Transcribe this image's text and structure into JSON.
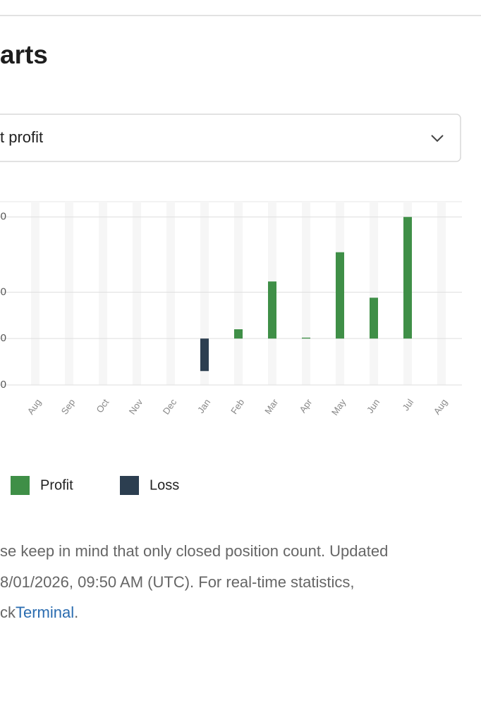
{
  "heading": "arts",
  "dropdown": "t profit",
  "note": {
    "lines": [
      "se keep in mind that only closed position count. Updated",
      "8/01/2026, 09:50 AM (UTC). For real-time statistics,"
    ],
    "last_prefix": "ck",
    "link": "Terminal",
    "last_suffix": "."
  },
  "chart_data": {
    "type": "bar",
    "categories": [
      "Aug",
      "Sep",
      "Oct",
      "Nov",
      "Dec",
      "Jan",
      "Feb",
      "Mar",
      "Apr",
      "May",
      "Jun",
      "Jul",
      "Aug"
    ],
    "series": [
      {
        "name": "Profit",
        "color": "#3f8f47",
        "values": [
          null,
          null,
          null,
          null,
          null,
          null,
          20,
          123,
          2,
          186,
          88,
          262,
          null
        ]
      },
      {
        "name": "Loss",
        "color": "#2c3e50",
        "values": [
          null,
          null,
          null,
          null,
          null,
          -70,
          null,
          null,
          null,
          null,
          null,
          null,
          null
        ]
      }
    ],
    "ylim": [
      -100,
      295
    ],
    "yticks": [
      {
        "value": -100,
        "label": "0"
      },
      {
        "value": 0,
        "label": "0"
      },
      {
        "value": 100,
        "label": "0"
      },
      {
        "value": 262,
        "label": "0"
      }
    ],
    "grid": true
  }
}
